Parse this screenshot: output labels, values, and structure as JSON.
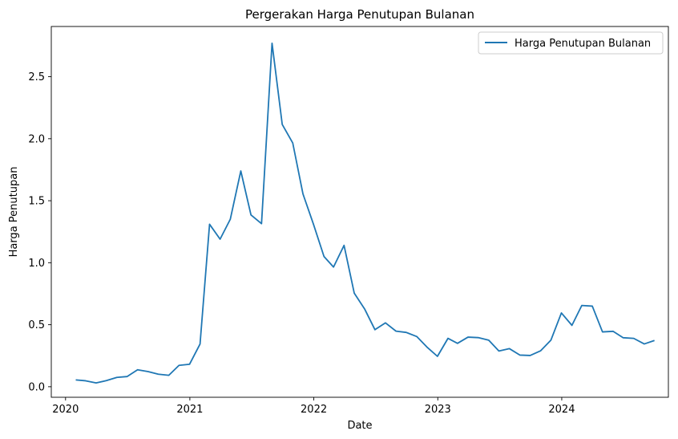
{
  "chart_data": {
    "type": "line",
    "title": "Pergerakan Harga Penutupan Bulanan",
    "xlabel": "Date",
    "ylabel": "Harga Penutupan",
    "xlim": [
      "2019-11-20",
      "2024-11-10"
    ],
    "ylim": [
      -0.085,
      2.905
    ],
    "x_ticks": [
      "2020-01-01",
      "2021-01-01",
      "2022-01-01",
      "2023-01-01",
      "2024-01-01"
    ],
    "x_tick_labels": [
      "2020",
      "2021",
      "2022",
      "2023",
      "2024"
    ],
    "y_ticks": [
      0.0,
      0.5,
      1.0,
      1.5,
      2.0,
      2.5
    ],
    "y_tick_labels": [
      "0.0",
      "0.5",
      "1.0",
      "1.5",
      "2.0",
      "2.5"
    ],
    "legend_position": "top-right",
    "grid": false,
    "series": [
      {
        "name": "Harga Penutupan Bulanan",
        "color": "#1f77b4",
        "x": [
          "2020-01-31",
          "2020-02-29",
          "2020-03-31",
          "2020-04-30",
          "2020-05-31",
          "2020-06-30",
          "2020-07-31",
          "2020-08-31",
          "2020-09-30",
          "2020-10-31",
          "2020-11-30",
          "2020-12-31",
          "2021-01-31",
          "2021-02-28",
          "2021-03-31",
          "2021-04-30",
          "2021-05-31",
          "2021-06-30",
          "2021-07-31",
          "2021-08-31",
          "2021-09-30",
          "2021-10-31",
          "2021-11-30",
          "2021-12-31",
          "2022-01-31",
          "2022-02-28",
          "2022-03-31",
          "2022-04-30",
          "2022-05-31",
          "2022-06-30",
          "2022-07-31",
          "2022-08-31",
          "2022-09-30",
          "2022-10-31",
          "2022-11-30",
          "2022-12-31",
          "2023-01-31",
          "2023-02-28",
          "2023-03-31",
          "2023-04-30",
          "2023-05-31",
          "2023-06-30",
          "2023-07-31",
          "2023-08-31",
          "2023-09-30",
          "2023-10-31",
          "2023-11-30",
          "2023-12-31",
          "2024-01-31",
          "2024-02-29",
          "2024-03-31",
          "2024-04-30",
          "2024-05-31",
          "2024-06-30",
          "2024-07-31",
          "2024-08-31",
          "2024-09-30"
        ],
        "values": [
          0.055,
          0.048,
          0.031,
          0.049,
          0.075,
          0.082,
          0.137,
          0.122,
          0.101,
          0.092,
          0.172,
          0.181,
          0.344,
          1.31,
          1.19,
          1.35,
          1.74,
          1.385,
          1.315,
          2.77,
          2.115,
          1.965,
          1.555,
          1.31,
          1.05,
          0.965,
          1.14,
          0.755,
          0.625,
          0.46,
          0.515,
          0.448,
          0.438,
          0.405,
          0.32,
          0.245,
          0.39,
          0.35,
          0.4,
          0.396,
          0.375,
          0.288,
          0.307,
          0.255,
          0.252,
          0.29,
          0.375,
          0.595,
          0.495,
          0.655,
          0.65,
          0.442,
          0.447,
          0.395,
          0.39,
          0.345,
          0.373
        ]
      }
    ]
  }
}
